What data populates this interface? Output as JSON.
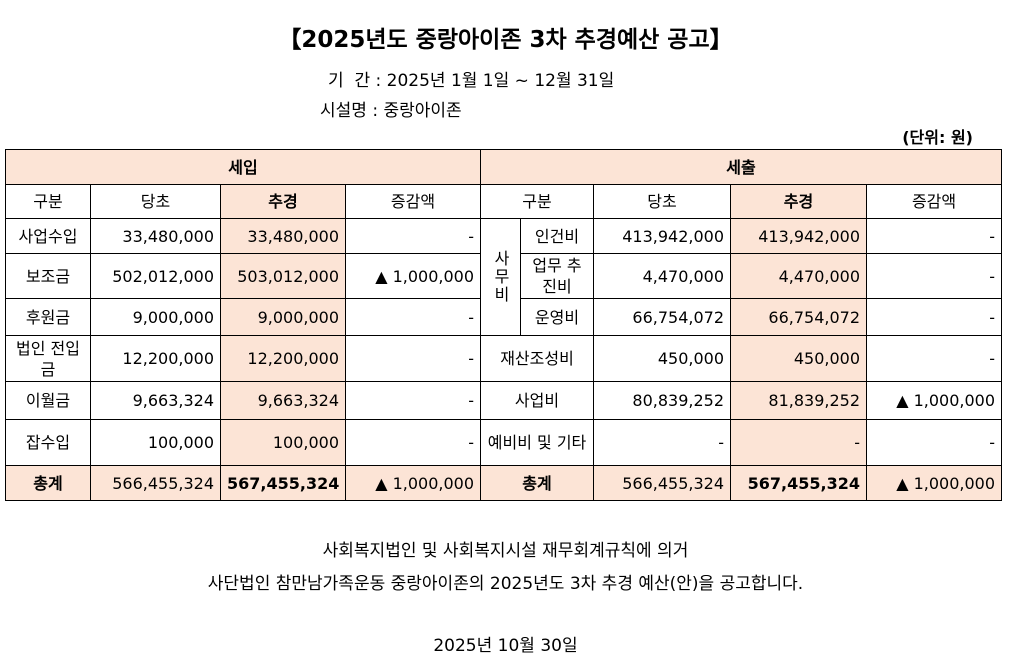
{
  "header": {
    "title": "【2025년도 중랑아이존 3차 추경예산 공고】",
    "period_label": "기  간 :",
    "period": "2025년 1월 1일 ~ 12월 31일",
    "facility_label": "시설명 :",
    "facility": "중랑아이존",
    "unit": "(단위: 원)"
  },
  "table": {
    "income_title": "세입",
    "expense_title": "세출",
    "columns": [
      "구분",
      "당초",
      "추경",
      "증감액",
      "구분",
      "당초",
      "추경",
      "증감액"
    ],
    "income_rows": [
      [
        "사업수입",
        "33,480,000",
        "33,480,000",
        "-"
      ],
      [
        "보조금",
        "502,012,000",
        "503,012,000",
        "▲ 1,000,000"
      ],
      [
        "후원금",
        "9,000,000",
        "9,000,000",
        "-"
      ],
      [
        "법인 전입금",
        "12,200,000",
        "12,200,000",
        "-"
      ],
      [
        "이월금",
        "9,663,324",
        "9,663,324",
        "-"
      ],
      [
        "잡수입",
        "100,000",
        "100,000",
        "-"
      ]
    ],
    "expense_group": "사무비",
    "expense_rows": [
      [
        "인건비",
        "413,942,000",
        "413,942,000",
        "-"
      ],
      [
        "업무 추진비",
        "4,470,000",
        "4,470,000",
        "-"
      ],
      [
        "운영비",
        "66,754,072",
        "66,754,072",
        "-"
      ],
      [
        "재산조성비",
        "450,000",
        "450,000",
        "-"
      ],
      [
        "사업비",
        "80,839,252",
        "81,839,252",
        "▲ 1,000,000"
      ],
      [
        "예비비 및 기타",
        "-",
        "-",
        "-"
      ]
    ],
    "total": {
      "income": [
        "총계",
        "566,455,324",
        "567,455,324",
        "▲ 1,000,000"
      ],
      "expense": [
        "총계",
        "566,455,324",
        "567,455,324",
        "▲ 1,000,000"
      ]
    }
  },
  "footer": {
    "lines": [
      "사회복지법인 및 사회복지시설 재무회계규칙에 의거",
      "사단법인 참만남가족운동 중랑아이존의 2025년도 3차 추경 예산(안)을 공고합니다."
    ],
    "date": "2025년 10월 30일"
  }
}
